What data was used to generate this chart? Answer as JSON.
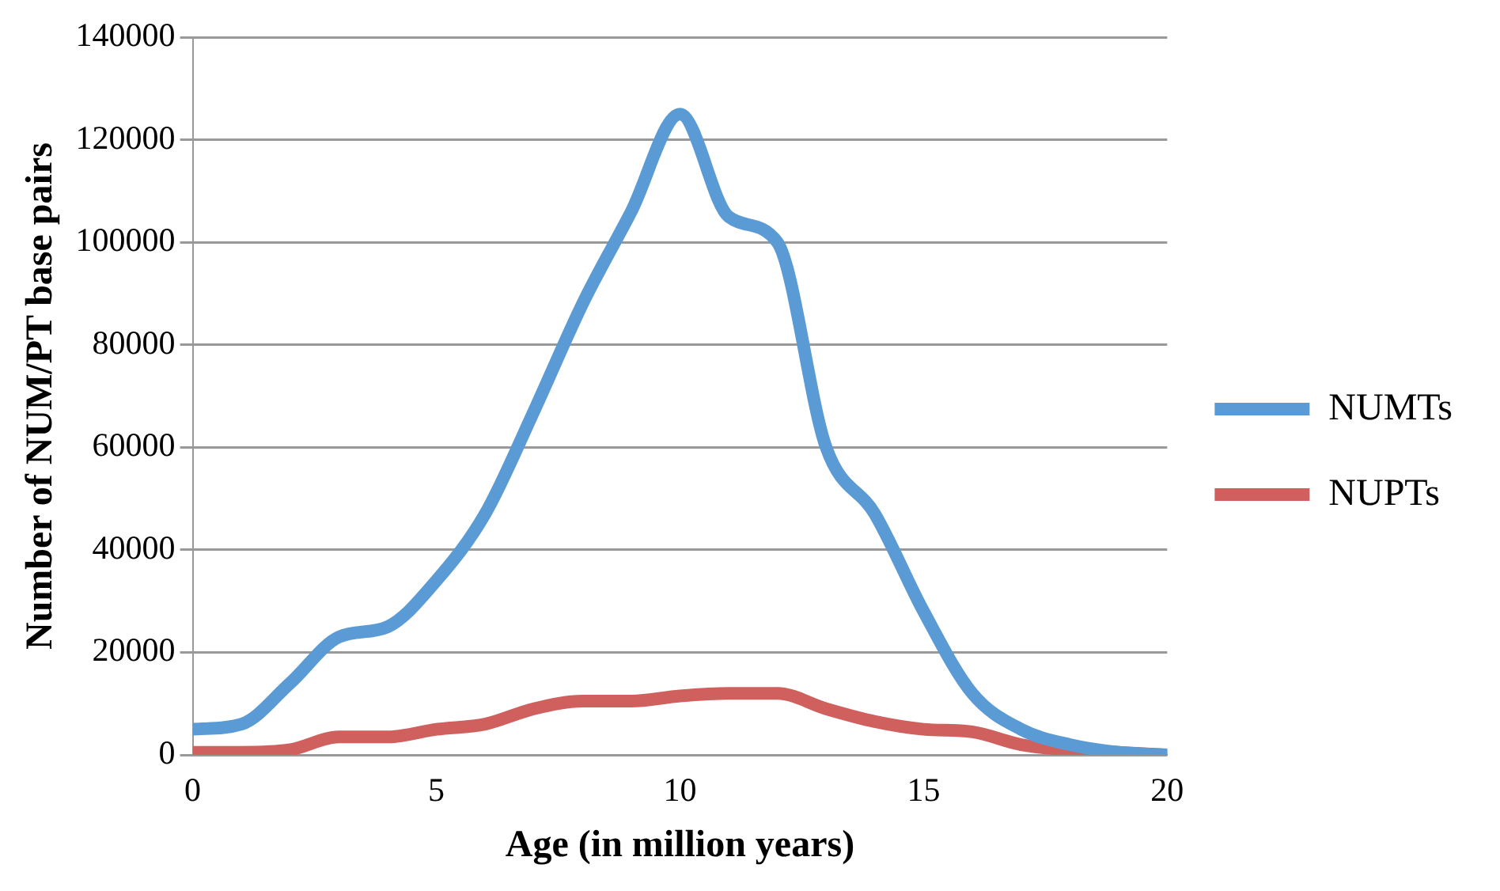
{
  "chart_data": {
    "type": "line",
    "xlabel": "Age (in million years)",
    "ylabel": "Number of NUM/PT base pairs",
    "x": [
      0,
      1,
      2,
      3,
      4,
      5,
      6,
      7,
      8,
      9,
      10,
      11,
      12,
      13,
      14,
      15,
      16,
      17,
      18,
      19,
      20
    ],
    "series": [
      {
        "name": "NUMTs",
        "color": "#5b9bd5",
        "values": [
          5000,
          6000,
          14000,
          23000,
          25000,
          34000,
          47000,
          67000,
          88000,
          106000,
          125000,
          105000,
          100000,
          60000,
          47000,
          28000,
          12000,
          5000,
          2000,
          500,
          0
        ]
      },
      {
        "name": "NUPTs",
        "color": "#d0605e",
        "values": [
          500,
          500,
          1000,
          3500,
          3500,
          5000,
          6000,
          9000,
          10500,
          10500,
          11500,
          12000,
          12000,
          9000,
          6500,
          5000,
          4500,
          2000,
          1000,
          500,
          0
        ]
      }
    ],
    "xlim": [
      0,
      20
    ],
    "xticks": [
      0,
      5,
      10,
      15,
      20
    ],
    "ylim": [
      0,
      140000
    ],
    "yticks": [
      0,
      20000,
      40000,
      60000,
      80000,
      100000,
      120000,
      140000
    ],
    "grid": "y",
    "legend": "right",
    "marker": "none",
    "line_style": "solid"
  }
}
